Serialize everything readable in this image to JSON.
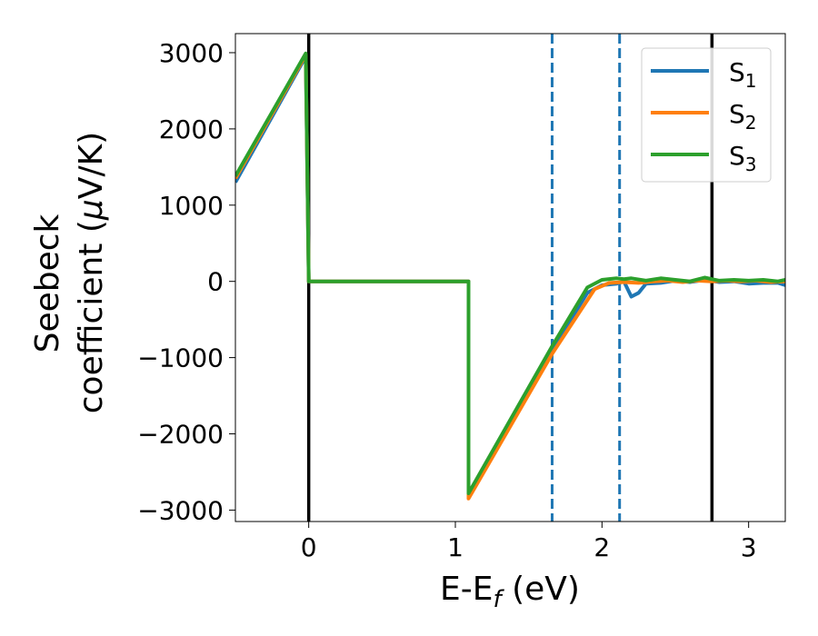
{
  "chart_data": {
    "type": "line",
    "title": "",
    "xlabel": "E-E",
    "xlabel_sub": "f",
    "xlabel_unit": " (eV)",
    "ylabel_line1": "Seebeck",
    "ylabel_line2": "coefficient  (",
    "ylabel_mu": "μ",
    "ylabel_unit": "V/K)",
    "xlim": [
      -0.5,
      3.25
    ],
    "ylim": [
      -3150,
      3250
    ],
    "xticks": [
      0,
      1,
      2,
      3
    ],
    "yticks": [
      3000,
      2000,
      1000,
      0,
      -1000,
      -2000,
      -3000
    ],
    "xtick_labels": [
      "0",
      "1",
      "2",
      "3"
    ],
    "ytick_labels": [
      "3000",
      "2000",
      "1000",
      "0",
      "−1000",
      "−2000",
      "−3000"
    ],
    "grid": false,
    "legend_position": "top-right",
    "vlines": [
      {
        "x": 0.0,
        "style": "solid",
        "color": "#000000"
      },
      {
        "x": 2.75,
        "style": "solid",
        "color": "#000000"
      },
      {
        "x": 1.66,
        "style": "dashed",
        "color": "#1f77b4"
      },
      {
        "x": 2.12,
        "style": "dashed",
        "color": "#1f77b4"
      }
    ],
    "series": [
      {
        "name": "S",
        "sub": "1",
        "color": "#1f77b4",
        "x": [
          -0.5,
          -0.02,
          -0.02,
          0.0,
          1.09,
          1.09,
          1.66,
          1.9,
          2.0,
          2.1,
          2.15,
          2.2,
          2.25,
          2.3,
          2.4,
          2.5,
          2.6,
          2.7,
          2.8,
          2.9,
          3.0,
          3.1,
          3.2,
          3.25
        ],
        "y": [
          1300,
          2950,
          2950,
          0,
          0,
          -2800,
          -900,
          -150,
          -50,
          -30,
          0,
          -200,
          -150,
          -30,
          -20,
          10,
          -10,
          20,
          -10,
          0,
          -30,
          -20,
          -20,
          -50
        ]
      },
      {
        "name": "S",
        "sub": "2",
        "color": "#ff7f0e",
        "x": [
          -0.5,
          -0.02,
          -0.02,
          0.0,
          1.09,
          1.09,
          1.66,
          1.95,
          2.05,
          2.15,
          2.25,
          2.35,
          2.45,
          2.55,
          2.65,
          2.75,
          2.85,
          2.95,
          3.05,
          3.15,
          3.25
        ],
        "y": [
          1350,
          2970,
          2970,
          0,
          0,
          -2850,
          -950,
          -100,
          -20,
          -10,
          -20,
          0,
          10,
          -10,
          10,
          0,
          10,
          0,
          10,
          -10,
          0
        ]
      },
      {
        "name": "S",
        "sub": "3",
        "color": "#2ca02c",
        "x": [
          -0.5,
          -0.02,
          -0.02,
          0.0,
          1.09,
          1.09,
          1.66,
          1.9,
          2.0,
          2.1,
          2.15,
          2.2,
          2.3,
          2.4,
          2.5,
          2.6,
          2.7,
          2.8,
          2.9,
          3.0,
          3.1,
          3.2,
          3.25
        ],
        "y": [
          1380,
          2990,
          2990,
          0,
          0,
          -2780,
          -850,
          -80,
          20,
          40,
          30,
          40,
          10,
          40,
          20,
          0,
          50,
          10,
          20,
          10,
          20,
          0,
          20
        ]
      }
    ]
  }
}
